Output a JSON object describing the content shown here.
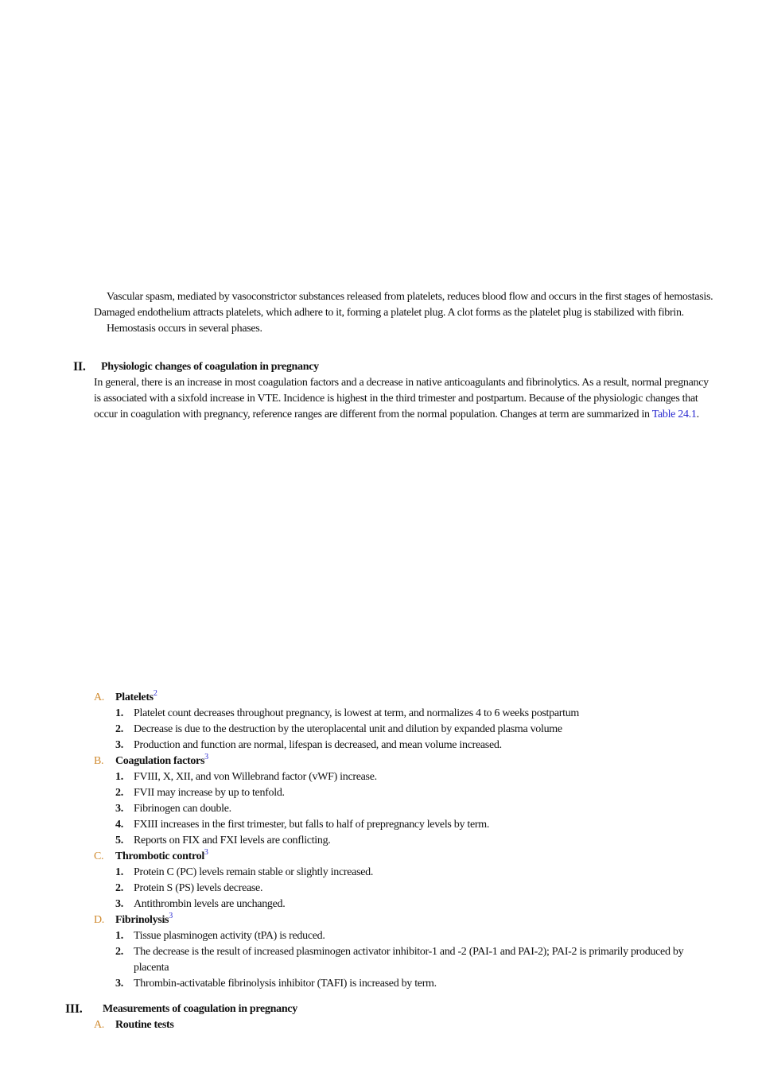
{
  "intro": {
    "paragraphs": [
      "Vascular spasm, mediated by vasoconstrictor substances released from platelets, reduces blood flow and occurs in the first stages of hemostasis. Damaged endothelium attracts platelets, which adhere to it, forming a platelet plug. A clot forms as the platelet plug is stabilized with fibrin.",
      "Hemostasis occurs in several phases."
    ]
  },
  "sections": [
    {
      "numeral": "II.",
      "title": "Physiologic changes of coagulation in pregnancy",
      "body": {
        "text": "In general, there is an increase in most coagulation factors and a decrease in native anticoagulants and fibrinolytics. As a result, normal pregnancy is associated with a sixfold increase in VTE. Incidence is highest in the third trimester and postpartum. Because of the physiologic changes that occur in coagulation with pregnancy, reference ranges are different from the normal population. Changes at term are summarized in ",
        "link": "Table 24.1",
        "after": "."
      },
      "subsections": [
        {
          "letter": "A.",
          "title": "Platelets",
          "ref": "2",
          "items": [
            {
              "number": "1.",
              "text": "Platelet count decreases throughout pregnancy, is lowest at term, and normalizes 4 to 6 weeks postpartum"
            },
            {
              "number": "2.",
              "text": "Decrease is due to the destruction by the uteroplacental unit and dilution by expanded plasma volume"
            },
            {
              "number": "3.",
              "text": "Production and function are normal, lifespan is decreased, and mean volume increased."
            }
          ]
        },
        {
          "letter": "B.",
          "title": "Coagulation factors",
          "ref": "3",
          "items": [
            {
              "number": "1.",
              "text": "FVIII, X, XII, and von Willebrand factor (vWF) increase."
            },
            {
              "number": "2.",
              "text": "FVII may increase by up to tenfold."
            },
            {
              "number": "3.",
              "text": "Fibrinogen can double."
            },
            {
              "number": "4.",
              "text": "FXIII increases in the first trimester, but falls to half of prepregnancy levels by term."
            },
            {
              "number": "5.",
              "text": "Reports on FIX and FXI levels are conflicting."
            }
          ]
        },
        {
          "letter": "C.",
          "title": "Thrombotic control",
          "ref": "3",
          "items": [
            {
              "number": "1.",
              "text": "Protein C (PC) levels remain stable or slightly increased."
            },
            {
              "number": "2.",
              "text": "Protein S (PS) levels decrease."
            },
            {
              "number": "3.",
              "text": "Antithrombin levels are unchanged."
            }
          ]
        },
        {
          "letter": "D.",
          "title": "Fibrinolysis",
          "ref": "3",
          "items": [
            {
              "number": "1.",
              "text": "Tissue plasminogen activity (tPA) is reduced."
            },
            {
              "number": "2.",
              "text": "The decrease is the result of increased plasminogen activator inhibitor-1 and -2 (PAI-1 and PAI-2); PAI-2 is primarily produced by placenta"
            },
            {
              "number": "3.",
              "text": "Thrombin-activatable fibrinolysis inhibitor (TAFI) is increased by term."
            }
          ]
        }
      ]
    },
    {
      "numeral": "III.",
      "title": "Measurements of coagulation in pregnancy",
      "subsections": [
        {
          "letter": "A.",
          "title": "Routine tests"
        }
      ]
    }
  ]
}
